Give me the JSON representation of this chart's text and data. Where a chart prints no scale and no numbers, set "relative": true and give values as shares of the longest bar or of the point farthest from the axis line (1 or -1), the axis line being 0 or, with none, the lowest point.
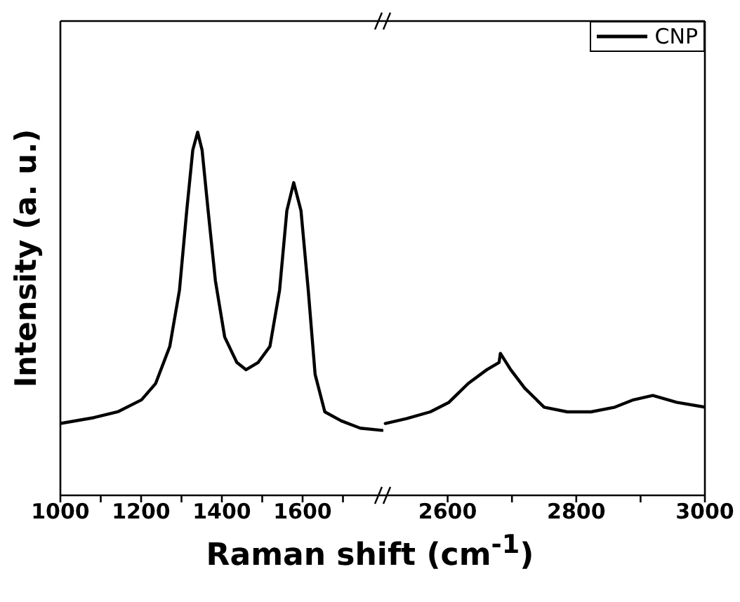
{
  "chart_data": [
    {
      "type": "line",
      "relative": true,
      "ylabel": "Intensity (a. u.)",
      "xlabel": "Raman shift (cm$^{-1}$)",
      "xlim": [
        1000,
        1800
      ],
      "xticks": [
        1000,
        {
          "value": 1100,
          "label": null
        },
        1200,
        {
          "value": 1300,
          "label": null
        },
        1400,
        {
          "value": 1500,
          "label": null
        },
        1600,
        {
          "value": 1700,
          "label": null
        }
      ],
      "marker": "none",
      "line_style": "solid",
      "series": [
        {
          "color": "#000000",
          "x": [
            1000,
            1083,
            1142,
            1201,
            1236,
            1271,
            1295,
            1313,
            1328,
            1340,
            1351,
            1366,
            1384,
            1407,
            1437,
            1460,
            1490,
            1519,
            1543,
            1561,
            1578,
            1596,
            1614,
            1631,
            1655,
            1696,
            1743,
            1797
          ],
          "values": [
            0.198,
            0.214,
            0.23,
            0.263,
            0.308,
            0.41,
            0.565,
            0.784,
            0.951,
            1,
            0.951,
            0.784,
            0.591,
            0.436,
            0.366,
            0.346,
            0.366,
            0.41,
            0.565,
            0.784,
            0.861,
            0.784,
            0.565,
            0.333,
            0.23,
            0.205,
            0.185,
            0.179
          ]
        }
      ]
    },
    {
      "type": "line",
      "relative": true,
      "legend": "top right",
      "xlim": [
        2500,
        3000
      ],
      "xticks": [
        2600,
        {
          "value": 2700,
          "label": null
        },
        2800,
        {
          "value": 2900,
          "label": null
        },
        3000
      ],
      "marker": "none",
      "line_style": "solid",
      "series": [
        {
          "name": "CNP",
          "color": "#000000",
          "x": [
            2503,
            2536,
            2573,
            2602,
            2632,
            2661,
            2680,
            2682,
            2698,
            2720,
            2750,
            2786,
            2823,
            2860,
            2889,
            2919,
            2956,
            3000
          ],
          "values": [
            0.506,
            0.54,
            0.588,
            0.655,
            0.788,
            0.885,
            0.936,
            1,
            0.885,
            0.754,
            0.621,
            0.588,
            0.588,
            0.621,
            0.673,
            0.703,
            0.655,
            0.621
          ]
        }
      ]
    }
  ]
}
